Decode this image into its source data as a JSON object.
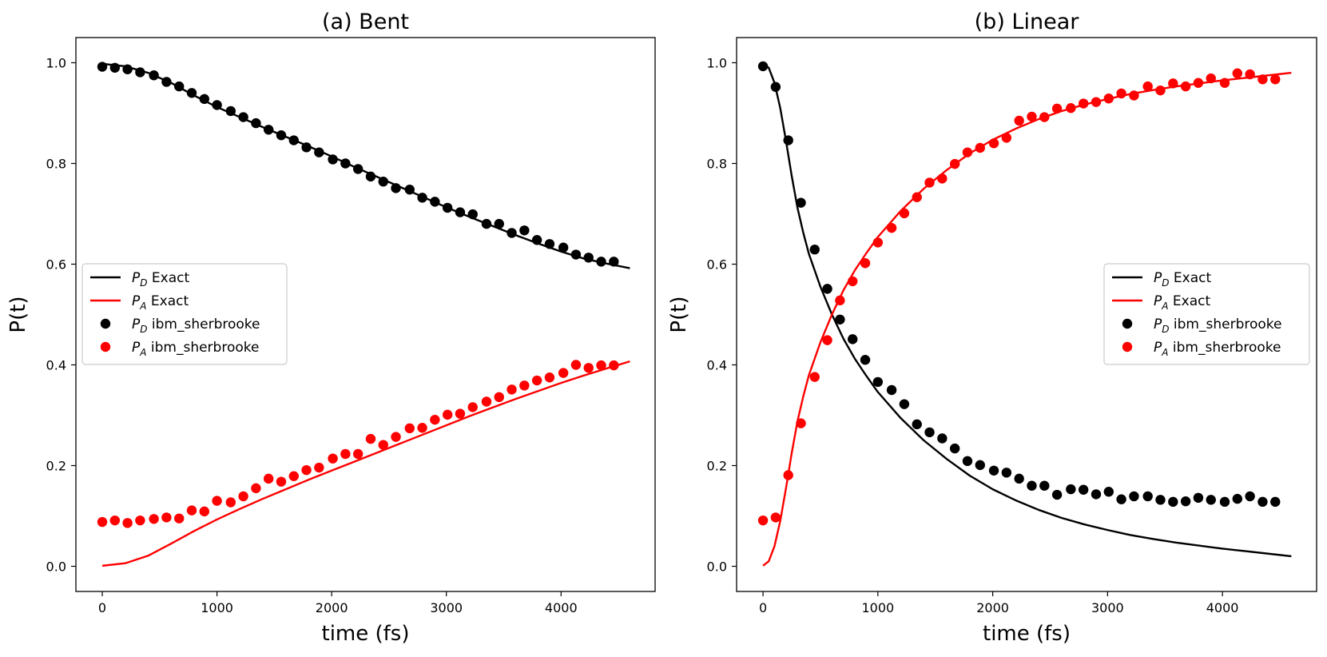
{
  "colors": {
    "pd": "#000000",
    "pa": "#ff0000",
    "frame": "#000000",
    "legend_border": "#cccccc"
  },
  "legend": {
    "entries": [
      {
        "kind": "line",
        "series": "pd",
        "sym": "P",
        "sub": "D",
        "text": " Exact"
      },
      {
        "kind": "line",
        "series": "pa",
        "sym": "P",
        "sub": "A",
        "text": " Exact"
      },
      {
        "kind": "marker",
        "series": "pd",
        "sym": "P",
        "sub": "D",
        "text": " ibm_sherbrooke"
      },
      {
        "kind": "marker",
        "series": "pa",
        "sym": "P",
        "sub": "A",
        "text": " ibm_sherbrooke"
      }
    ]
  },
  "chart_data": [
    {
      "type": "line",
      "title": "(a) Bent",
      "xlabel": "time (fs)",
      "ylabel": "P(t)",
      "xlim": [
        -230,
        4820
      ],
      "ylim": [
        -0.05,
        1.05
      ],
      "xticks": [
        0,
        1000,
        2000,
        3000,
        4000
      ],
      "yticks": [
        0.0,
        0.2,
        0.4,
        0.6,
        0.8,
        1.0
      ],
      "ytick_labels": [
        "0.0",
        "0.2",
        "0.4",
        "0.6",
        "0.8",
        "1.0"
      ],
      "legend_position": "center-left",
      "series": [
        {
          "name": "PD Exact",
          "kind": "line",
          "color_key": "pd",
          "x": [
            0,
            200,
            400,
            600,
            800,
            1000,
            1200,
            1400,
            1600,
            1800,
            2000,
            2200,
            2400,
            2600,
            2800,
            3000,
            3200,
            3400,
            3600,
            3800,
            4000,
            4200,
            4400,
            4600
          ],
          "y": [
            0.998,
            0.993,
            0.98,
            0.96,
            0.935,
            0.912,
            0.892,
            0.872,
            0.853,
            0.834,
            0.814,
            0.793,
            0.773,
            0.753,
            0.733,
            0.713,
            0.694,
            0.676,
            0.658,
            0.641,
            0.625,
            0.611,
            0.601,
            0.592
          ]
        },
        {
          "name": "PA Exact",
          "kind": "line",
          "color_key": "pa",
          "x": [
            0,
            200,
            400,
            600,
            800,
            1000,
            1200,
            1400,
            1600,
            1800,
            2000,
            2200,
            2400,
            2600,
            2800,
            3000,
            3200,
            3400,
            3600,
            3800,
            4000,
            4200,
            4400,
            4600
          ],
          "y": [
            0.001,
            0.006,
            0.021,
            0.045,
            0.07,
            0.093,
            0.114,
            0.134,
            0.153,
            0.172,
            0.19,
            0.208,
            0.226,
            0.244,
            0.262,
            0.28,
            0.298,
            0.315,
            0.332,
            0.348,
            0.364,
            0.379,
            0.393,
            0.407
          ]
        },
        {
          "name": "PD ibm_sherbrooke",
          "kind": "scatter",
          "color_key": "pd",
          "x": [
            0,
            110,
            220,
            330,
            450,
            560,
            670,
            780,
            890,
            1000,
            1120,
            1230,
            1340,
            1450,
            1560,
            1670,
            1780,
            1890,
            2010,
            2120,
            2230,
            2340,
            2450,
            2560,
            2680,
            2790,
            2900,
            3010,
            3120,
            3230,
            3350,
            3460,
            3570,
            3680,
            3790,
            3900,
            4020,
            4130,
            4240,
            4350,
            4460
          ],
          "y": [
            0.992,
            0.99,
            0.987,
            0.981,
            0.975,
            0.962,
            0.953,
            0.94,
            0.928,
            0.916,
            0.904,
            0.892,
            0.88,
            0.867,
            0.856,
            0.846,
            0.832,
            0.822,
            0.808,
            0.8,
            0.789,
            0.774,
            0.764,
            0.751,
            0.748,
            0.732,
            0.724,
            0.712,
            0.703,
            0.699,
            0.68,
            0.68,
            0.662,
            0.667,
            0.648,
            0.64,
            0.633,
            0.619,
            0.613,
            0.605,
            0.605
          ]
        },
        {
          "name": "PA ibm_sherbrooke",
          "kind": "scatter",
          "color_key": "pa",
          "x": [
            0,
            110,
            220,
            330,
            450,
            560,
            670,
            780,
            890,
            1000,
            1120,
            1230,
            1340,
            1450,
            1560,
            1670,
            1780,
            1890,
            2010,
            2120,
            2230,
            2340,
            2450,
            2560,
            2680,
            2790,
            2900,
            3010,
            3120,
            3230,
            3350,
            3460,
            3570,
            3680,
            3790,
            3900,
            4020,
            4130,
            4240,
            4350,
            4460
          ],
          "y": [
            0.088,
            0.091,
            0.086,
            0.091,
            0.094,
            0.097,
            0.095,
            0.111,
            0.109,
            0.13,
            0.127,
            0.139,
            0.155,
            0.174,
            0.168,
            0.179,
            0.191,
            0.196,
            0.214,
            0.223,
            0.223,
            0.253,
            0.241,
            0.257,
            0.274,
            0.275,
            0.291,
            0.301,
            0.303,
            0.316,
            0.327,
            0.336,
            0.351,
            0.359,
            0.369,
            0.375,
            0.384,
            0.4,
            0.394,
            0.399,
            0.399
          ]
        }
      ]
    },
    {
      "type": "line",
      "title": "(b) Linear",
      "xlabel": "time (fs)",
      "ylabel": "P(t)",
      "xlim": [
        -230,
        4820
      ],
      "ylim": [
        -0.05,
        1.05
      ],
      "xticks": [
        0,
        1000,
        2000,
        3000,
        4000
      ],
      "yticks": [
        0.0,
        0.2,
        0.4,
        0.6,
        0.8,
        1.0
      ],
      "ytick_labels": [
        "0.0",
        "0.2",
        "0.4",
        "0.6",
        "0.8",
        "1.0"
      ],
      "legend_position": "center-right",
      "series": [
        {
          "name": "PD Exact",
          "kind": "line",
          "color_key": "pd",
          "x": [
            0,
            50,
            100,
            150,
            200,
            250,
            300,
            350,
            400,
            500,
            600,
            700,
            800,
            900,
            1000,
            1200,
            1400,
            1600,
            1800,
            2000,
            2200,
            2400,
            2600,
            2800,
            3000,
            3200,
            3400,
            3600,
            3800,
            4000,
            4200,
            4400,
            4600
          ],
          "y": [
            0.998,
            0.99,
            0.96,
            0.91,
            0.845,
            0.775,
            0.712,
            0.663,
            0.62,
            0.555,
            0.5,
            0.452,
            0.412,
            0.378,
            0.346,
            0.294,
            0.25,
            0.213,
            0.18,
            0.153,
            0.131,
            0.112,
            0.096,
            0.083,
            0.072,
            0.062,
            0.054,
            0.047,
            0.041,
            0.035,
            0.03,
            0.025,
            0.02
          ]
        },
        {
          "name": "PA Exact",
          "kind": "line",
          "color_key": "pa",
          "x": [
            0,
            50,
            100,
            150,
            200,
            250,
            300,
            350,
            400,
            500,
            600,
            700,
            800,
            900,
            1000,
            1200,
            1400,
            1600,
            1800,
            2000,
            2200,
            2400,
            2600,
            2800,
            3000,
            3200,
            3400,
            3600,
            3800,
            4000,
            4200,
            4400,
            4600
          ],
          "y": [
            0.001,
            0.01,
            0.04,
            0.09,
            0.155,
            0.225,
            0.288,
            0.337,
            0.38,
            0.445,
            0.5,
            0.548,
            0.588,
            0.622,
            0.654,
            0.706,
            0.75,
            0.787,
            0.82,
            0.847,
            0.869,
            0.888,
            0.904,
            0.917,
            0.928,
            0.938,
            0.946,
            0.953,
            0.959,
            0.965,
            0.97,
            0.975,
            0.98
          ]
        },
        {
          "name": "PD ibm_sherbrooke",
          "kind": "scatter",
          "color_key": "pd",
          "x": [
            0,
            110,
            220,
            330,
            450,
            560,
            670,
            780,
            890,
            1000,
            1120,
            1230,
            1340,
            1450,
            1560,
            1670,
            1780,
            1890,
            2010,
            2120,
            2230,
            2340,
            2450,
            2560,
            2680,
            2790,
            2900,
            3010,
            3120,
            3230,
            3350,
            3460,
            3570,
            3680,
            3790,
            3900,
            4020,
            4130,
            4240,
            4350,
            4460
          ],
          "y": [
            0.993,
            0.952,
            0.846,
            0.722,
            0.629,
            0.551,
            0.49,
            0.451,
            0.41,
            0.366,
            0.35,
            0.322,
            0.282,
            0.266,
            0.254,
            0.234,
            0.209,
            0.201,
            0.19,
            0.186,
            0.174,
            0.16,
            0.16,
            0.142,
            0.153,
            0.152,
            0.143,
            0.148,
            0.133,
            0.139,
            0.139,
            0.132,
            0.128,
            0.129,
            0.136,
            0.132,
            0.128,
            0.134,
            0.139,
            0.128,
            0.128
          ]
        },
        {
          "name": "PA ibm_sherbrooke",
          "kind": "scatter",
          "color_key": "pa",
          "x": [
            0,
            110,
            220,
            330,
            450,
            560,
            670,
            780,
            890,
            1000,
            1120,
            1230,
            1340,
            1450,
            1560,
            1670,
            1780,
            1890,
            2010,
            2120,
            2230,
            2340,
            2450,
            2560,
            2680,
            2790,
            2900,
            3010,
            3120,
            3230,
            3350,
            3460,
            3570,
            3680,
            3790,
            3900,
            4020,
            4130,
            4240,
            4350,
            4460
          ],
          "y": [
            0.091,
            0.097,
            0.181,
            0.284,
            0.376,
            0.449,
            0.528,
            0.566,
            0.602,
            0.643,
            0.672,
            0.701,
            0.733,
            0.762,
            0.77,
            0.799,
            0.822,
            0.831,
            0.84,
            0.851,
            0.885,
            0.893,
            0.892,
            0.909,
            0.91,
            0.919,
            0.922,
            0.929,
            0.939,
            0.935,
            0.953,
            0.945,
            0.959,
            0.953,
            0.96,
            0.969,
            0.96,
            0.979,
            0.977,
            0.967,
            0.967
          ]
        }
      ]
    }
  ]
}
